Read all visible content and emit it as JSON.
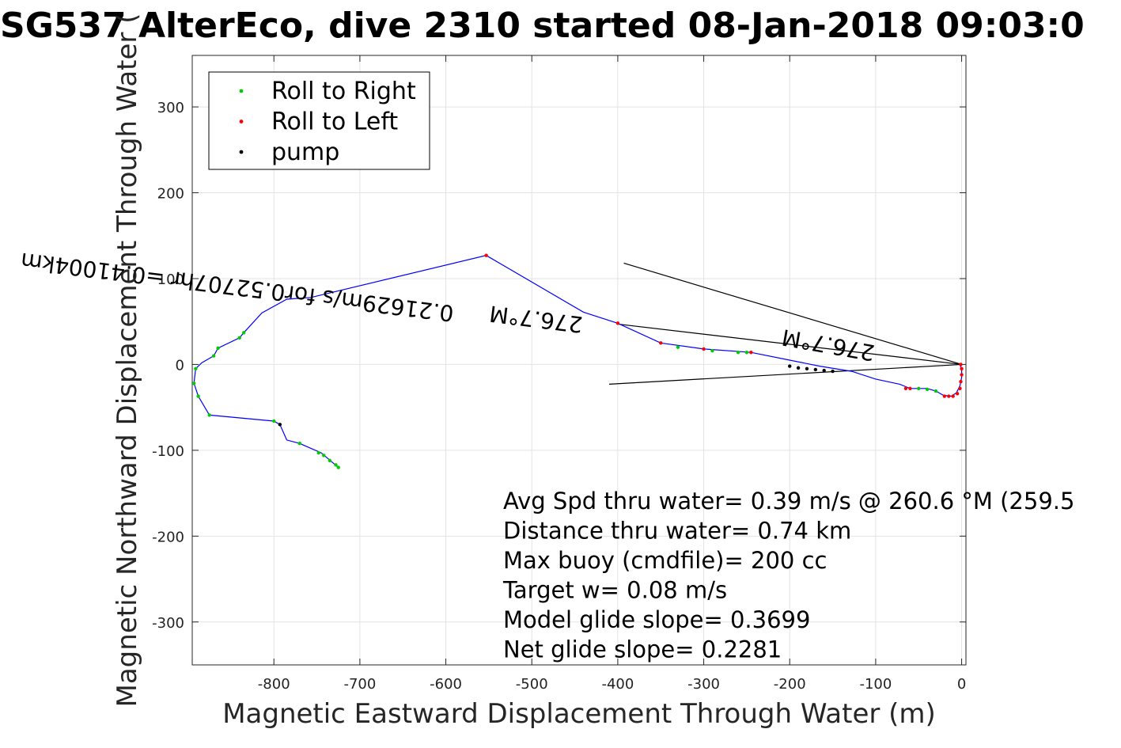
{
  "chart_data": {
    "type": "line",
    "title": "SG537 AlterEco, dive 2310 started 08-Jan-2018 09:03:0",
    "xlabel": "Magnetic Eastward Displacement Through Water (m)",
    "ylabel": "Magnetic Northward Displacement Through Water (",
    "xlim": [
      -895,
      5
    ],
    "ylim": [
      -350,
      360
    ],
    "xticks": [
      -800,
      -700,
      -600,
      -500,
      -400,
      -300,
      -200,
      -100,
      0
    ],
    "yticks": [
      300,
      200,
      100,
      0,
      -100,
      -200,
      -300
    ],
    "grid": true,
    "legend_position": "top-left",
    "legend": [
      {
        "label": "Roll to Right",
        "color": "#00cc00"
      },
      {
        "label": "Roll to Left",
        "color": "#ff0000"
      },
      {
        "label": "pump",
        "color": "#000000"
      }
    ],
    "series": [
      {
        "color": "#0000ff",
        "x": [
          -725,
          -745,
          -770,
          -785,
          -793,
          -800,
          -875,
          -888,
          -893,
          -891,
          -884,
          -870,
          -865,
          -840,
          -835,
          -814,
          -785,
          -757,
          -553,
          -440,
          -400,
          -350,
          -300,
          -245,
          -200,
          -165,
          -128,
          -100,
          -72,
          -60,
          -50,
          -40,
          -30,
          -21,
          -12,
          -6,
          -2,
          0,
          0,
          -1,
          -2
        ],
        "y": [
          -120,
          -103,
          -92,
          -88,
          -70,
          -66,
          -59,
          -37,
          -22,
          -5,
          2,
          10,
          19,
          31,
          37,
          60,
          76,
          78,
          127,
          61,
          48,
          25,
          18,
          14,
          5,
          -2,
          -8,
          -17,
          -23,
          -28,
          -28,
          -28,
          -31,
          -36,
          -37,
          -33,
          -25,
          -15,
          -7,
          -3,
          0
        ]
      }
    ],
    "markers": {
      "roll_right": [
        [
          -725,
          -120
        ],
        [
          -728,
          -117
        ],
        [
          -735,
          -112
        ],
        [
          -742,
          -106
        ],
        [
          -748,
          -103
        ],
        [
          -770,
          -92
        ],
        [
          -800,
          -66
        ],
        [
          -875,
          -59
        ],
        [
          -888,
          -37
        ],
        [
          -893,
          -22
        ],
        [
          -891,
          -5
        ],
        [
          -870,
          10
        ],
        [
          -865,
          19
        ],
        [
          -840,
          31
        ],
        [
          -835,
          37
        ],
        [
          -330,
          20
        ],
        [
          -290,
          16
        ],
        [
          -260,
          14
        ],
        [
          -250,
          14
        ],
        [
          -50,
          -28
        ],
        [
          -40,
          -29
        ],
        [
          -30,
          -31
        ]
      ],
      "roll_left": [
        [
          -553,
          127
        ],
        [
          -400,
          48
        ],
        [
          -350,
          25
        ],
        [
          -300,
          18
        ],
        [
          -245,
          14
        ],
        [
          -65,
          -28
        ],
        [
          -60,
          -28
        ],
        [
          -20,
          -37
        ],
        [
          -15,
          -37
        ],
        [
          -10,
          -37
        ],
        [
          -5,
          -34
        ],
        [
          -2,
          -28
        ],
        [
          -1,
          -20
        ],
        [
          0,
          -12
        ],
        [
          0,
          -5
        ],
        [
          -1,
          0
        ]
      ],
      "pump": [
        [
          -793,
          -70
        ],
        [
          -200,
          -2
        ],
        [
          -190,
          -4
        ],
        [
          -180,
          -5
        ],
        [
          -170,
          -6
        ],
        [
          -160,
          -7
        ],
        [
          -150,
          -8
        ]
      ]
    },
    "reference_lines": [
      {
        "x": [
          -393,
          0
        ],
        "y": [
          118,
          0
        ]
      },
      {
        "x": [
          -410,
          0
        ],
        "y": [
          -23,
          0
        ]
      },
      {
        "x": [
          -400,
          0
        ],
        "y": [
          47,
          0
        ]
      }
    ],
    "annotations": [
      {
        "text": "276.7°M",
        "x": -100,
        "y": 22,
        "rotation": 190
      },
      {
        "text": "0.21629m/s for0.52707hr =0.41004km",
        "x": -590,
        "y": 68,
        "rotation": 187
      },
      {
        "text": "276.7°M",
        "x": -440,
        "y": 55,
        "rotation": 187
      }
    ],
    "stats": [
      "Avg Spd thru water=  0.39 m/s @ 260.6 °M (259.5",
      "Distance thru water=  0.74 km",
      "Max buoy (cmdfile)= 200 cc",
      "Target w= 0.08 m/s",
      "Model glide slope= 0.3699",
      "Net glide slope= 0.2281"
    ]
  }
}
